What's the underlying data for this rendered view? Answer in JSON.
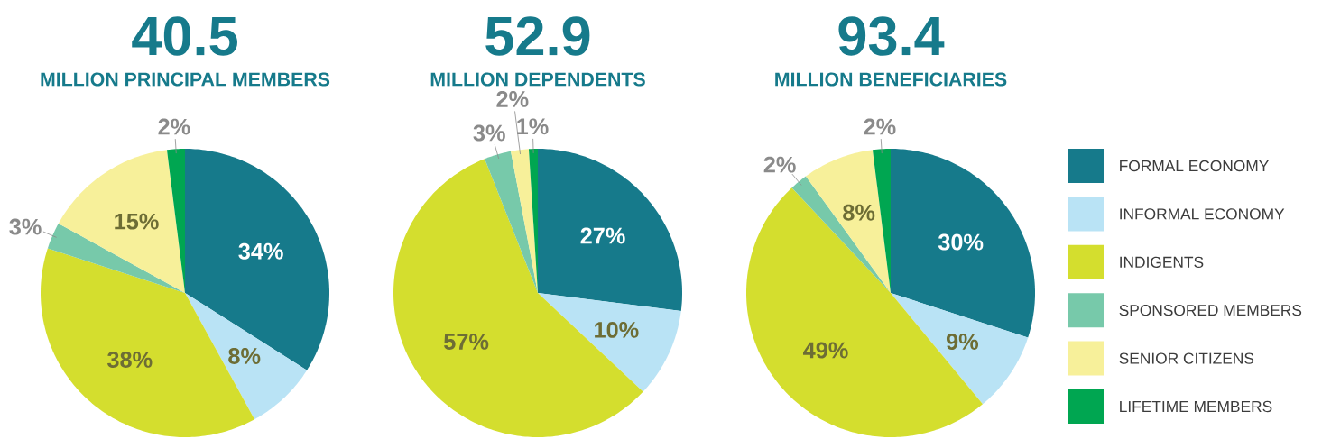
{
  "chart_data": [
    {
      "type": "pie",
      "title": "40.5",
      "subtitle": "MILLION PRINCIPAL MEMBERS",
      "categories": [
        null,
        null,
        null,
        null,
        null,
        null
      ],
      "values": [
        34,
        8,
        38,
        3,
        15,
        2
      ],
      "value_labels": [
        "34%",
        "8%",
        "38%",
        "3%",
        "15%",
        "2%"
      ],
      "colors": [
        "#167a8b",
        "#b9e3f5",
        "#d4de2e",
        "#77c9aa",
        "#f7f09a",
        "#00a651"
      ]
    },
    {
      "type": "pie",
      "title": "52.9",
      "subtitle": "MILLION DEPENDENTS",
      "categories": [
        null,
        null,
        null,
        null,
        null,
        null
      ],
      "values": [
        27,
        10,
        57,
        3,
        2,
        1
      ],
      "value_labels": [
        "27%",
        "10%",
        "57%",
        "3%",
        "2%",
        "1%"
      ],
      "colors": [
        "#167a8b",
        "#b9e3f5",
        "#d4de2e",
        "#77c9aa",
        "#f7f09a",
        "#00a651"
      ]
    },
    {
      "type": "pie",
      "title": "93.4",
      "subtitle": "MILLION BENEFICIARIES",
      "categories": [
        "FORMAL ECONOMY",
        "INFORMAL ECONOMY",
        "INDIGENTS",
        "SPONSORED MEMBERS",
        "SENIOR CITIZENS",
        "LIFETIME MEMBERS"
      ],
      "values": [
        30,
        9,
        49,
        2,
        8,
        2
      ],
      "value_labels": [
        "30%",
        "9%",
        "49%",
        "2%",
        "8%",
        "2%"
      ],
      "colors": [
        "#167a8b",
        "#b9e3f5",
        "#d4de2e",
        "#77c9aa",
        "#f7f09a",
        "#00a651"
      ],
      "legend": "right"
    }
  ]
}
